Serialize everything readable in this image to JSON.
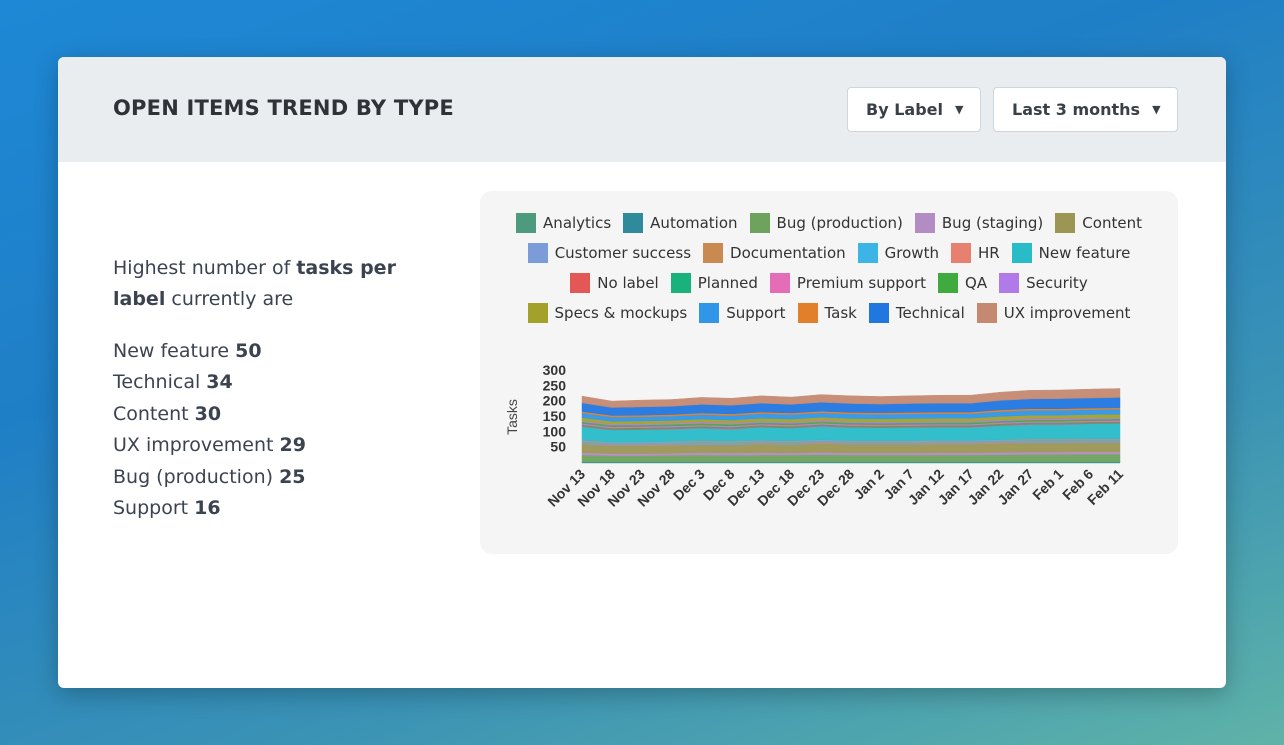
{
  "card": {
    "title": "OPEN ITEMS TREND BY TYPE",
    "group_by": "By Label",
    "period": "Last 3 months"
  },
  "summary": {
    "intro_text": "Highest number of",
    "intro_bold": "tasks per label",
    "intro_rest": "currently are",
    "top_labels": [
      {
        "label": "New feature",
        "count": 50
      },
      {
        "label": "Technical",
        "count": 34
      },
      {
        "label": "Content",
        "count": 30
      },
      {
        "label": "UX improvement",
        "count": 29
      },
      {
        "label": "Bug (production)",
        "count": 25
      },
      {
        "label": "Support",
        "count": 16
      }
    ]
  },
  "chart_data": {
    "type": "area",
    "stacked": true,
    "title": "",
    "xlabel": "",
    "ylabel": "Tasks",
    "ylim": [
      0,
      300
    ],
    "yticks": [
      50,
      100,
      150,
      200,
      250,
      300
    ],
    "grid": false,
    "legend_position": "top",
    "x_tick_labels": [
      "Nov 13",
      "Nov 18",
      "Nov 23",
      "Nov 28",
      "Dec 3",
      "Dec 8",
      "Dec 13",
      "Dec 18",
      "Dec 23",
      "Dec 28",
      "Jan 2",
      "Jan 7",
      "Jan 12",
      "Jan 17",
      "Jan 22",
      "Jan 27",
      "Feb 1",
      "Feb 6",
      "Feb 11"
    ],
    "series": [
      {
        "name": "Analytics",
        "color": "#4e9a7e",
        "values": [
          2,
          2,
          2,
          2,
          2,
          2,
          2,
          2,
          2,
          2,
          2,
          2,
          2,
          2,
          2,
          2,
          2,
          2,
          2
        ]
      },
      {
        "name": "Automation",
        "color": "#2f8a9c",
        "values": [
          2,
          2,
          2,
          2,
          2,
          2,
          2,
          2,
          2,
          2,
          2,
          2,
          2,
          2,
          2,
          2,
          2,
          2,
          2
        ]
      },
      {
        "name": "Bug (production)",
        "color": "#6ea35e",
        "values": [
          22,
          20,
          20,
          21,
          22,
          21,
          22,
          22,
          23,
          22,
          22,
          22,
          22,
          22,
          23,
          24,
          24,
          25,
          25
        ]
      },
      {
        "name": "Bug (staging)",
        "color": "#b38cc4",
        "values": [
          8,
          7,
          7,
          7,
          8,
          8,
          8,
          7,
          8,
          7,
          7,
          7,
          8,
          8,
          8,
          8,
          8,
          8,
          8
        ]
      },
      {
        "name": "Content",
        "color": "#9c9655",
        "values": [
          28,
          25,
          25,
          26,
          26,
          26,
          28,
          27,
          29,
          28,
          28,
          28,
          28,
          28,
          29,
          30,
          30,
          30,
          30
        ]
      },
      {
        "name": "Customer success",
        "color": "#7b9bd9",
        "values": [
          3,
          3,
          3,
          3,
          3,
          3,
          3,
          3,
          3,
          3,
          3,
          3,
          3,
          3,
          3,
          3,
          3,
          3,
          3
        ]
      },
      {
        "name": "Documentation",
        "color": "#c98a52",
        "values": [
          3,
          3,
          3,
          3,
          3,
          3,
          3,
          3,
          3,
          3,
          3,
          3,
          3,
          3,
          3,
          3,
          3,
          3,
          3
        ]
      },
      {
        "name": "Growth",
        "color": "#3db4e6",
        "values": [
          4,
          4,
          4,
          4,
          4,
          4,
          4,
          4,
          4,
          4,
          4,
          4,
          4,
          4,
          4,
          4,
          4,
          4,
          4
        ]
      },
      {
        "name": "HR",
        "color": "#e8806f",
        "values": [
          2,
          2,
          2,
          2,
          2,
          2,
          2,
          2,
          2,
          2,
          2,
          2,
          2,
          2,
          2,
          2,
          2,
          2,
          2
        ]
      },
      {
        "name": "New feature",
        "color": "#28bcc9",
        "values": [
          45,
          40,
          41,
          41,
          42,
          40,
          43,
          42,
          44,
          43,
          42,
          43,
          43,
          43,
          46,
          48,
          48,
          49,
          50
        ]
      },
      {
        "name": "No label",
        "color": "#e45757",
        "values": [
          3,
          3,
          3,
          3,
          3,
          3,
          3,
          3,
          3,
          3,
          3,
          3,
          3,
          3,
          3,
          3,
          3,
          3,
          3
        ]
      },
      {
        "name": "Planned",
        "color": "#19b27d",
        "values": [
          3,
          3,
          3,
          3,
          3,
          3,
          3,
          3,
          3,
          3,
          3,
          3,
          3,
          3,
          3,
          3,
          3,
          3,
          3
        ]
      },
      {
        "name": "Premium support",
        "color": "#e56db8",
        "values": [
          4,
          4,
          4,
          4,
          4,
          4,
          4,
          4,
          4,
          4,
          4,
          4,
          4,
          4,
          4,
          4,
          4,
          4,
          4
        ]
      },
      {
        "name": "QA",
        "color": "#3fab3f",
        "values": [
          5,
          5,
          5,
          5,
          5,
          5,
          5,
          5,
          5,
          5,
          5,
          5,
          5,
          5,
          5,
          5,
          5,
          5,
          5
        ]
      },
      {
        "name": "Security",
        "color": "#b07be8",
        "values": [
          4,
          4,
          4,
          4,
          4,
          4,
          4,
          4,
          4,
          4,
          4,
          4,
          4,
          4,
          4,
          4,
          4,
          4,
          4
        ]
      },
      {
        "name": "Specs & mockups",
        "color": "#a4a12a",
        "values": [
          10,
          9,
          9,
          9,
          10,
          10,
          10,
          10,
          10,
          10,
          10,
          10,
          10,
          10,
          11,
          11,
          11,
          11,
          11
        ]
      },
      {
        "name": "Support",
        "color": "#2f96e8",
        "values": [
          15,
          14,
          14,
          14,
          15,
          15,
          15,
          15,
          15,
          15,
          15,
          15,
          15,
          15,
          16,
          16,
          16,
          16,
          16
        ]
      },
      {
        "name": "Task",
        "color": "#e27f2a",
        "values": [
          5,
          5,
          5,
          5,
          5,
          5,
          5,
          5,
          5,
          5,
          5,
          5,
          5,
          5,
          5,
          5,
          5,
          5,
          5
        ]
      },
      {
        "name": "Technical",
        "color": "#2177e0",
        "values": [
          28,
          26,
          27,
          27,
          28,
          28,
          29,
          28,
          29,
          29,
          28,
          29,
          29,
          29,
          31,
          32,
          33,
          33,
          34
        ]
      },
      {
        "name": "UX improvement",
        "color": "#c58972",
        "values": [
          22,
          21,
          22,
          22,
          23,
          23,
          24,
          24,
          25,
          25,
          25,
          25,
          26,
          26,
          27,
          28,
          28,
          29,
          29
        ]
      }
    ]
  }
}
